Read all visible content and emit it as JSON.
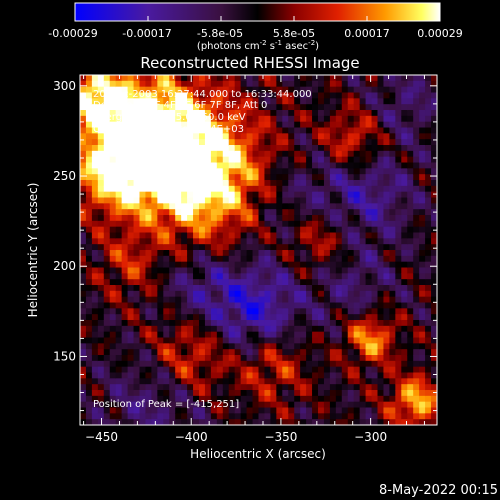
{
  "colorbar": {
    "tick_labels": [
      "-0.00029",
      "-0.00017",
      "-5.8e-05",
      "5.8e-05",
      "0.00017",
      "0.00029"
    ],
    "units_prefix": "(photons cm",
    "units_sup1": "-2",
    "units_mid": " s",
    "units_sup2": "-1",
    "units_mid2": " asec",
    "units_sup3": "-2",
    "units_suffix": ")"
  },
  "chart_data": {
    "type": "heatmap",
    "title": "Reconstructed RHESSI Image",
    "xlabel": "Heliocentric X (arcsec)",
    "ylabel": "Heliocentric Y (arcsec)",
    "xlim": [
      -462,
      -263
    ],
    "ylim": [
      112,
      306
    ],
    "x_ticks": [
      -450,
      -400,
      -350,
      -300
    ],
    "y_ticks": [
      150,
      200,
      250,
      300
    ],
    "color_range": [
      -0.00029,
      0.00029
    ],
    "colormap": "blue-purple-black-red-yellow-white",
    "annotations": [
      "20-Dec-2003 16:27:44.000 to 16:33:44.000",
      "Detectors: 3F 4F 5F 6F 7F 8F, Att 0",
      "Energy Range: 25.0 - 50.0 keV",
      "Clean.  Total counts: 4.74E+03"
    ],
    "peak_label": "Position of Peak = [-415,251]",
    "peak_position": [
      -415,
      251
    ]
  },
  "footer": {
    "date_label": "8-May-2022 00:15"
  }
}
